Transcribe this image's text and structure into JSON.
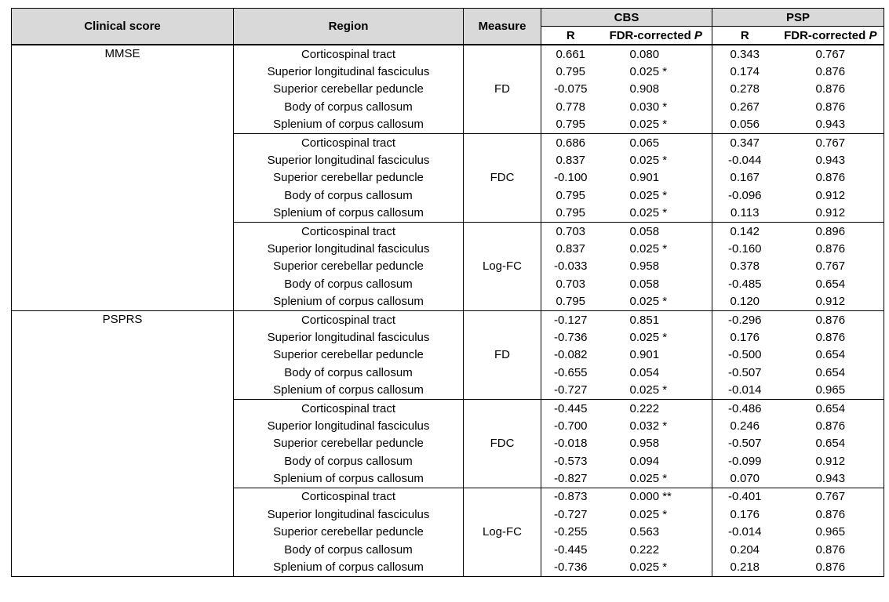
{
  "header": {
    "clinical_score": "Clinical score",
    "region": "Region",
    "measure": "Measure",
    "cbs": "CBS",
    "psp": "PSP",
    "r": "R",
    "fdr_prefix": "FDR-corrected",
    "fdr_italic": "P"
  },
  "groups": [
    {
      "score": "MMSE",
      "measures": [
        {
          "measure": "FD",
          "rows": [
            [
              "Corticospinal tract",
              "0.661",
              "0.080",
              "0.343",
              "0.767"
            ],
            [
              "Superior longitudinal fasciculus",
              "0.795",
              "0.025 *",
              "0.174",
              "0.876"
            ],
            [
              "Superior cerebellar peduncle",
              "-0.075",
              "0.908",
              "0.278",
              "0.876"
            ],
            [
              "Body of corpus callosum",
              "0.778",
              "0.030 *",
              "0.267",
              "0.876"
            ],
            [
              "Splenium of corpus callosum",
              "0.795",
              "0.025 *",
              "0.056",
              "0.943"
            ]
          ]
        },
        {
          "measure": "FDC",
          "rows": [
            [
              "Corticospinal tract",
              "0.686",
              "0.065",
              "0.347",
              "0.767"
            ],
            [
              "Superior longitudinal fasciculus",
              "0.837",
              "0.025 *",
              "-0.044",
              "0.943"
            ],
            [
              "Superior cerebellar peduncle",
              "-0.100",
              "0.901",
              "0.167",
              "0.876"
            ],
            [
              "Body of corpus callosum",
              "0.795",
              "0.025 *",
              "-0.096",
              "0.912"
            ],
            [
              "Splenium of corpus callosum",
              "0.795",
              "0.025 *",
              "0.113",
              "0.912"
            ]
          ]
        },
        {
          "measure": "Log-FC",
          "rows": [
            [
              "Corticospinal tract",
              "0.703",
              "0.058",
              "0.142",
              "0.896"
            ],
            [
              "Superior longitudinal fasciculus",
              "0.837",
              "0.025 *",
              "-0.160",
              "0.876"
            ],
            [
              "Superior cerebellar peduncle",
              "-0.033",
              "0.958",
              "0.378",
              "0.767"
            ],
            [
              "Body of corpus callosum",
              "0.703",
              "0.058",
              "-0.485",
              "0.654"
            ],
            [
              "Splenium of corpus callosum",
              "0.795",
              "0.025 *",
              "0.120",
              "0.912"
            ]
          ]
        }
      ]
    },
    {
      "score": "PSPRS",
      "measures": [
        {
          "measure": "FD",
          "rows": [
            [
              "Corticospinal tract",
              "-0.127",
              "0.851",
              "-0.296",
              "0.876"
            ],
            [
              "Superior longitudinal fasciculus",
              "-0.736",
              "0.025 *",
              "0.176",
              "0.876"
            ],
            [
              "Superior cerebellar peduncle",
              "-0.082",
              "0.901",
              "-0.500",
              "0.654"
            ],
            [
              "Body of corpus callosum",
              "-0.655",
              "0.054",
              "-0.507",
              "0.654"
            ],
            [
              "Splenium of corpus callosum",
              "-0.727",
              "0.025 *",
              "-0.014",
              "0.965"
            ]
          ]
        },
        {
          "measure": "FDC",
          "rows": [
            [
              "Corticospinal tract",
              "-0.445",
              "0.222",
              "-0.486",
              "0.654"
            ],
            [
              "Superior longitudinal fasciculus",
              "-0.700",
              "0.032 *",
              "0.246",
              "0.876"
            ],
            [
              "Superior cerebellar peduncle",
              "-0.018",
              "0.958",
              "-0.507",
              "0.654"
            ],
            [
              "Body of corpus callosum",
              "-0.573",
              "0.094",
              "-0.099",
              "0.912"
            ],
            [
              "Splenium of corpus callosum",
              "-0.827",
              "0.025 *",
              "0.070",
              "0.943"
            ]
          ]
        },
        {
          "measure": "Log-FC",
          "rows": [
            [
              "Corticospinal tract",
              "-0.873",
              "0.000 **",
              "-0.401",
              "0.767"
            ],
            [
              "Superior longitudinal fasciculus",
              "-0.727",
              "0.025 *",
              "0.176",
              "0.876"
            ],
            [
              "Superior cerebellar peduncle",
              "-0.255",
              "0.563",
              "-0.014",
              "0.965"
            ],
            [
              "Body of corpus callosum",
              "-0.445",
              "0.222",
              "0.204",
              "0.876"
            ],
            [
              "Splenium of corpus callosum",
              "-0.736",
              "0.025 *",
              "0.218",
              "0.876"
            ]
          ]
        }
      ]
    }
  ]
}
